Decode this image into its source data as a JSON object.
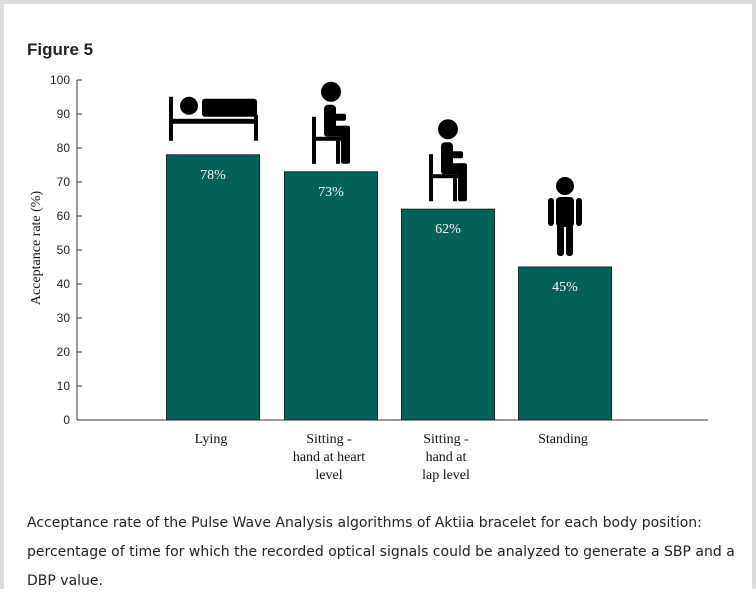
{
  "figure": {
    "title": "Figure 5",
    "caption": "Acceptance rate of the Pulse Wave Analysis algorithms of Aktiia bracelet for each body position: percentage of time for which the recorded optical signals could be analyzed to generate a SBP and a DBP value."
  },
  "colors": {
    "bar": "#03605a",
    "bar_label": "#ffffff",
    "axis": "#333333",
    "icon": "#000000"
  },
  "chart_data": {
    "type": "bar",
    "title": "",
    "xlabel": "",
    "ylabel": "Acceptance rate (%)",
    "ylim": [
      0,
      100
    ],
    "yticks": [
      "0",
      "10",
      "20",
      "30",
      "40",
      "50",
      "60",
      "70",
      "80",
      "90",
      "100"
    ],
    "grid": false,
    "categories": [
      [
        "Lying"
      ],
      [
        "Sitting -",
        "hand at heart",
        "level"
      ],
      [
        "Sitting -",
        "hand at",
        "lap level"
      ],
      [
        "Standing"
      ]
    ],
    "values": [
      78,
      73,
      62,
      45
    ],
    "value_labels": [
      "78%",
      "73%",
      "62%",
      "45%"
    ],
    "icons": [
      "bed-icon",
      "sitting-person-icon",
      "sitting-person-icon",
      "standing-person-icon"
    ]
  }
}
